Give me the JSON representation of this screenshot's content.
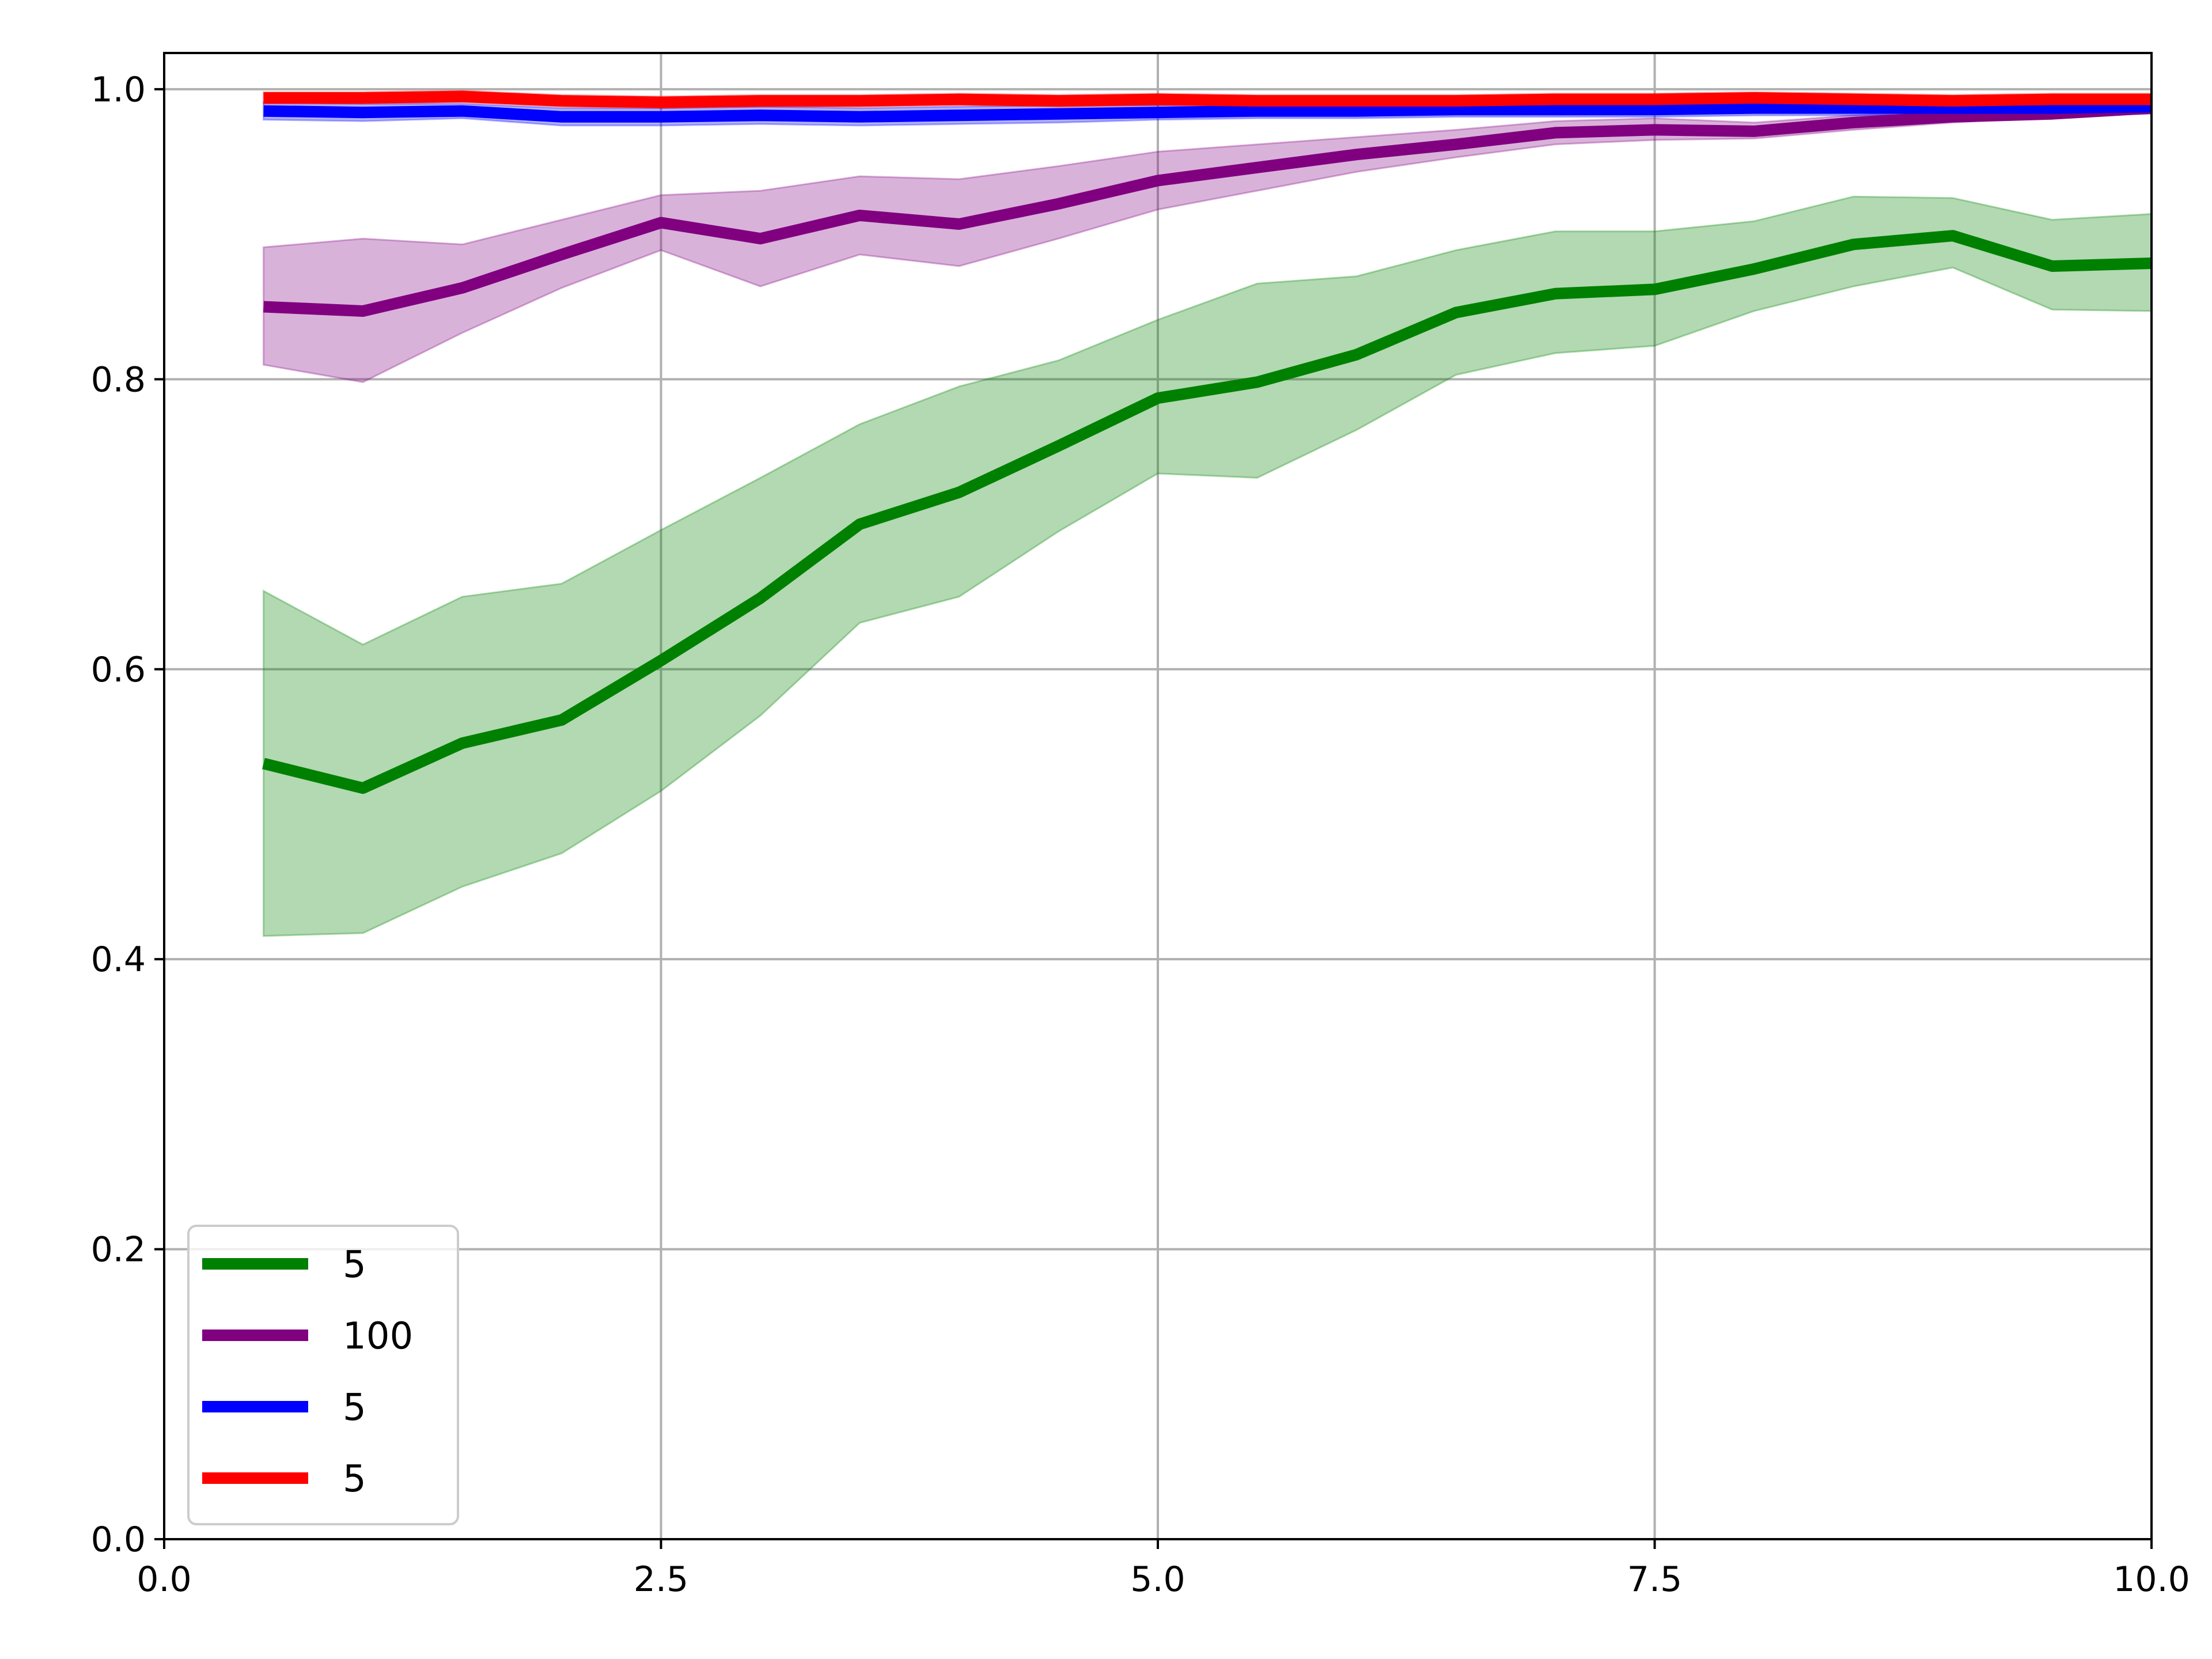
{
  "chart_data": {
    "type": "line",
    "title": "",
    "xlabel": "",
    "ylabel": "",
    "xlim": [
      0.0,
      10.0
    ],
    "ylim": [
      0.0,
      1.025
    ],
    "xticks": [
      0.0,
      2.5,
      5.0,
      7.5,
      10.0
    ],
    "xtick_labels": [
      "0.0",
      "2.5",
      "5.0",
      "7.5",
      "10.0"
    ],
    "yticks": [
      0.0,
      0.2,
      0.4,
      0.6,
      0.8,
      1.0
    ],
    "ytick_labels": [
      "0.0",
      "0.2",
      "0.4",
      "0.6",
      "0.8",
      "1.0"
    ],
    "grid": true,
    "legend_position": "lower-left",
    "x": [
      0.5,
      1.0,
      1.5,
      2.0,
      2.5,
      3.0,
      3.5,
      4.0,
      4.5,
      5.0,
      5.5,
      6.0,
      6.5,
      7.0,
      7.5,
      8.0,
      8.5,
      9.0,
      9.5,
      10.0
    ],
    "series": [
      {
        "name": "5",
        "color": "#008000",
        "values": [
          0.535,
          0.518,
          0.549,
          0.565,
          0.606,
          0.649,
          0.7,
          0.722,
          0.754,
          0.787,
          0.798,
          0.817,
          0.846,
          0.859,
          0.862,
          0.876,
          0.893,
          0.899,
          0.878,
          0.88
        ],
        "lower": [
          0.416,
          0.418,
          0.45,
          0.473,
          0.516,
          0.568,
          0.632,
          0.65,
          0.695,
          0.735,
          0.732,
          0.765,
          0.803,
          0.818,
          0.823,
          0.847,
          0.864,
          0.877,
          0.848,
          0.847
        ],
        "upper": [
          0.654,
          0.617,
          0.65,
          0.659,
          0.696,
          0.732,
          0.769,
          0.795,
          0.813,
          0.841,
          0.866,
          0.871,
          0.889,
          0.902,
          0.902,
          0.909,
          0.926,
          0.925,
          0.91,
          0.914
        ]
      },
      {
        "name": "100",
        "color": "#800080",
        "values": [
          0.85,
          0.847,
          0.863,
          0.886,
          0.908,
          0.897,
          0.913,
          0.907,
          0.921,
          0.937,
          0.946,
          0.955,
          0.962,
          0.97,
          0.972,
          0.971,
          0.977,
          0.981,
          0.983,
          0.987
        ],
        "lower": [
          0.81,
          0.798,
          0.832,
          0.863,
          0.889,
          0.864,
          0.886,
          0.878,
          0.897,
          0.917,
          0.93,
          0.943,
          0.953,
          0.962,
          0.965,
          0.966,
          0.972,
          0.977,
          0.981,
          0.984
        ],
        "upper": [
          0.891,
          0.897,
          0.893,
          0.91,
          0.927,
          0.93,
          0.94,
          0.938,
          0.947,
          0.957,
          0.962,
          0.967,
          0.972,
          0.978,
          0.98,
          0.977,
          0.982,
          0.985,
          0.986,
          0.99
        ]
      },
      {
        "name": "5",
        "color": "#0000ff",
        "values": [
          0.985,
          0.984,
          0.985,
          0.981,
          0.981,
          0.982,
          0.981,
          0.982,
          0.983,
          0.984,
          0.985,
          0.985,
          0.986,
          0.986,
          0.986,
          0.987,
          0.987,
          0.987,
          0.987,
          0.988
        ],
        "lower": [
          0.979,
          0.978,
          0.98,
          0.975,
          0.975,
          0.976,
          0.975,
          0.976,
          0.977,
          0.979,
          0.98,
          0.98,
          0.981,
          0.981,
          0.981,
          0.982,
          0.982,
          0.982,
          0.982,
          0.983
        ],
        "upper": [
          0.991,
          0.99,
          0.99,
          0.987,
          0.987,
          0.988,
          0.987,
          0.988,
          0.989,
          0.989,
          0.99,
          0.99,
          0.991,
          0.991,
          0.991,
          0.992,
          0.992,
          0.992,
          0.992,
          0.993
        ]
      },
      {
        "name": "5",
        "color": "#ff0000",
        "values": [
          0.994,
          0.994,
          0.995,
          0.992,
          0.991,
          0.992,
          0.992,
          0.993,
          0.992,
          0.993,
          0.992,
          0.992,
          0.992,
          0.993,
          0.993,
          0.994,
          0.993,
          0.992,
          0.993,
          0.993
        ],
        "lower": [
          0.99,
          0.99,
          0.991,
          0.988,
          0.987,
          0.988,
          0.988,
          0.989,
          0.988,
          0.989,
          0.988,
          0.988,
          0.988,
          0.989,
          0.989,
          0.99,
          0.989,
          0.988,
          0.989,
          0.989
        ],
        "upper": [
          0.998,
          0.998,
          0.999,
          0.996,
          0.995,
          0.996,
          0.996,
          0.997,
          0.996,
          0.997,
          0.996,
          0.996,
          0.996,
          0.997,
          0.997,
          0.998,
          0.997,
          0.996,
          0.997,
          0.997
        ]
      }
    ]
  }
}
